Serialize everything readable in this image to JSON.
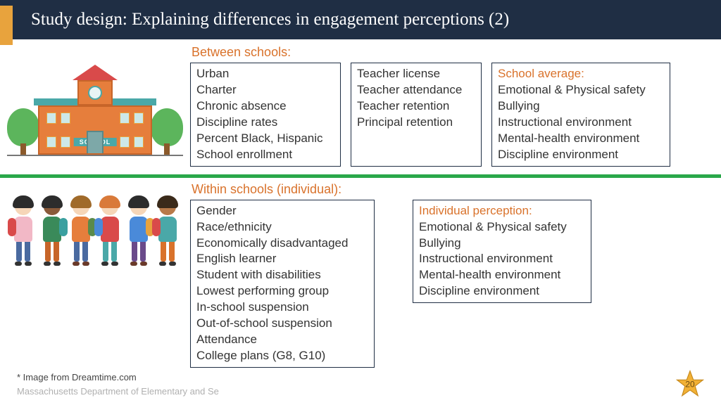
{
  "title": "Study design: Explaining differences in engagement perceptions (2)",
  "between": {
    "label": "Between schools:",
    "box1": [
      "Urban",
      "Charter",
      "Chronic absence",
      "Discipline rates",
      "Percent Black, Hispanic",
      "School enrollment"
    ],
    "box2": [
      "Teacher license",
      "Teacher attendance",
      "Teacher retention",
      "Principal retention"
    ],
    "box3_head": "School average:",
    "box3": [
      "Emotional & Physical safety",
      "Bullying",
      "Instructional environment",
      "Mental-health environment",
      "Discipline environment"
    ]
  },
  "within": {
    "label": "Within schools (individual):",
    "box1": [
      "Gender",
      "Race/ethnicity",
      "Economically disadvantaged",
      "English learner",
      "Student with disabilities",
      "Lowest performing group",
      "In-school suspension",
      "Out-of-school suspension",
      "Attendance",
      "College plans (G8, G10)"
    ],
    "box2_head": "Individual perception:",
    "box2": [
      "Emotional & Physical safety",
      "Bullying",
      "Instructional environment",
      "Mental-health environment",
      "Discipline environment"
    ]
  },
  "school_sign": "SCHOOL",
  "footnote": "* Image from Dreamtime.com",
  "department": "Massachusetts Department of Elementary and Se",
  "page_number": "20",
  "colors": {
    "title_bg": "#1f2e44",
    "accent_orange": "#e8a33d",
    "label_orange": "#d9722b",
    "divider_green": "#2aa84a",
    "star_fill": "#f2b135",
    "star_stroke": "#c78a1e"
  },
  "kids": [
    {
      "hair": "#2c2c2c",
      "skin": "#f6d6b8",
      "body": "#f2b8c6",
      "pack": "#d94a4a",
      "pack_side": "left",
      "legs": "#4a6aa0",
      "shoe": "#333"
    },
    {
      "hair": "#2c2c2c",
      "skin": "#8a5a3a",
      "body": "#3a8a5a",
      "pack": "#3aa0a0",
      "pack_side": "right",
      "legs": "#c76529",
      "shoe": "#333"
    },
    {
      "hair": "#a06a2a",
      "skin": "#f6d6b8",
      "body": "#e67e3c",
      "pack": "#5a8a4a",
      "pack_side": "right",
      "legs": "#4a6aa0",
      "shoe": "#6a3a2a"
    },
    {
      "hair": "#d97a3a",
      "skin": "#f6d6b8",
      "body": "#d94a4a",
      "pack": "#4a8ad9",
      "pack_side": "left",
      "legs": "#4aa8a8",
      "shoe": "#333"
    },
    {
      "hair": "#2c2c2c",
      "skin": "#f6d6b8",
      "body": "#4a8ad9",
      "pack": "#e8a33d",
      "pack_side": "right",
      "legs": "#6a4a8a",
      "shoe": "#6a3a2a"
    },
    {
      "hair": "#3a2a1a",
      "skin": "#b87a4a",
      "body": "#4aa8a8",
      "pack": "#d94a4a",
      "pack_side": "left",
      "legs": "#d9722b",
      "shoe": "#333"
    }
  ]
}
